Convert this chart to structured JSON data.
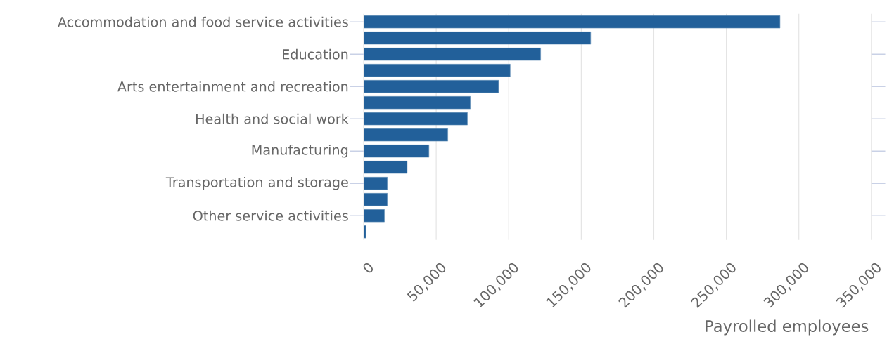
{
  "chart_data": {
    "type": "bar",
    "orientation": "horizontal",
    "xlabel": "Payrolled employees",
    "categories": [
      "Accommodation and food service activities",
      null,
      "Education",
      null,
      "Arts entertainment and recreation",
      null,
      "Health and social work",
      null,
      "Manufacturing",
      null,
      "Transportation and storage",
      null,
      "Other service activities",
      null
    ],
    "values": [
      287000,
      156500,
      122000,
      101000,
      93000,
      73500,
      71500,
      58000,
      45000,
      30000,
      16300,
      16300,
      14300,
      1500
    ],
    "color": "#22609a",
    "xlim": [
      0,
      350000
    ],
    "xticks": [
      0,
      {
        "value": 50000,
        "label": "50,000"
      },
      {
        "value": 100000,
        "label": "100,000"
      },
      {
        "value": 150000,
        "label": "150,000"
      },
      {
        "value": 200000,
        "label": "200,000"
      },
      {
        "value": 250000,
        "label": "250,000"
      },
      {
        "value": 300000,
        "label": "300,000"
      },
      {
        "value": 350000,
        "label": "350,000"
      }
    ],
    "grid": "x"
  }
}
